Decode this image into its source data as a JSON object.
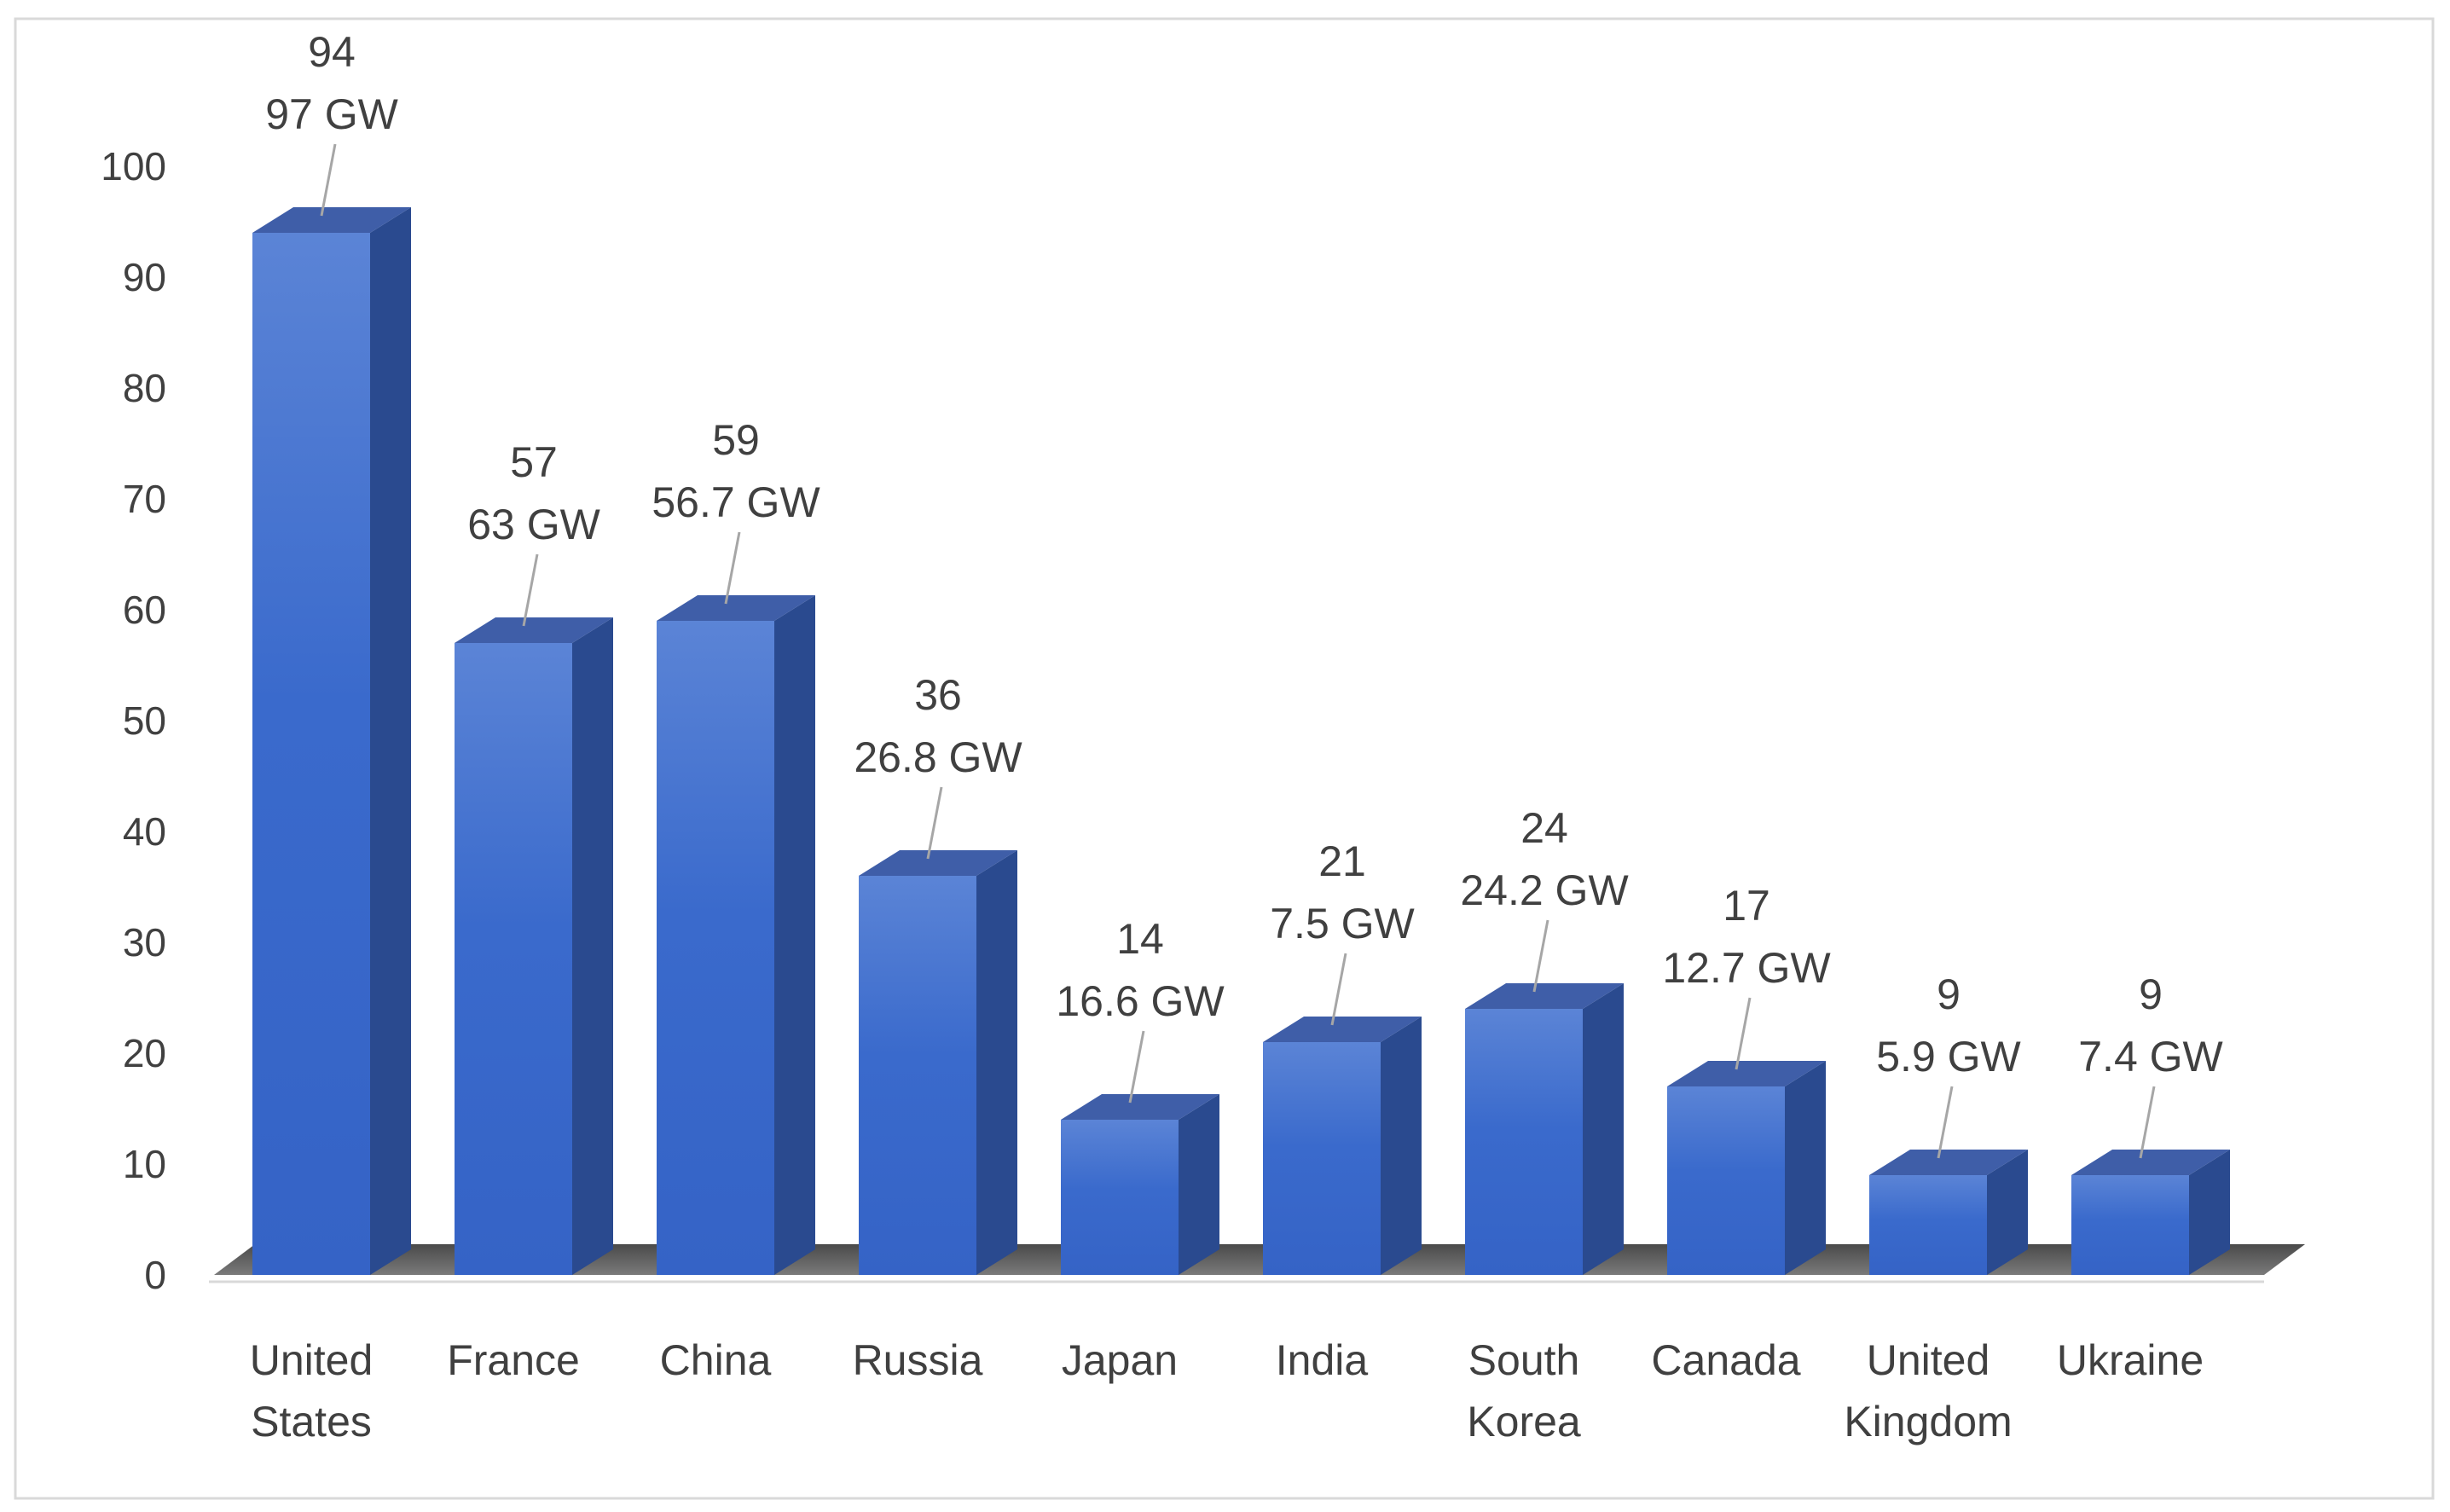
{
  "chart_data": {
    "type": "bar",
    "title": "",
    "xlabel": "",
    "ylabel": "",
    "ylim": [
      0,
      100
    ],
    "yticks": [
      0,
      10,
      20,
      30,
      40,
      50,
      60,
      70,
      80,
      90,
      100
    ],
    "grid": false,
    "legend": "none",
    "bar_color": "#4472C4",
    "categories": [
      [
        "United",
        "States"
      ],
      [
        "France"
      ],
      [
        "China"
      ],
      [
        "Russia"
      ],
      [
        "Japan"
      ],
      [
        "India"
      ],
      [
        "South",
        "Korea"
      ],
      [
        "Canada"
      ],
      [
        "United",
        "Kingdom"
      ],
      [
        "Ukraine"
      ]
    ],
    "values": [
      94,
      57,
      59,
      36,
      14,
      21,
      24,
      17,
      9,
      9
    ],
    "labels": [
      "97 GW",
      "63 GW",
      "56.7 GW",
      "26.8 GW",
      "16.6 GW",
      "7.5 GW",
      "24.2 GW",
      "12.7 GW",
      "5.9 GW",
      "7.4 GW"
    ]
  }
}
